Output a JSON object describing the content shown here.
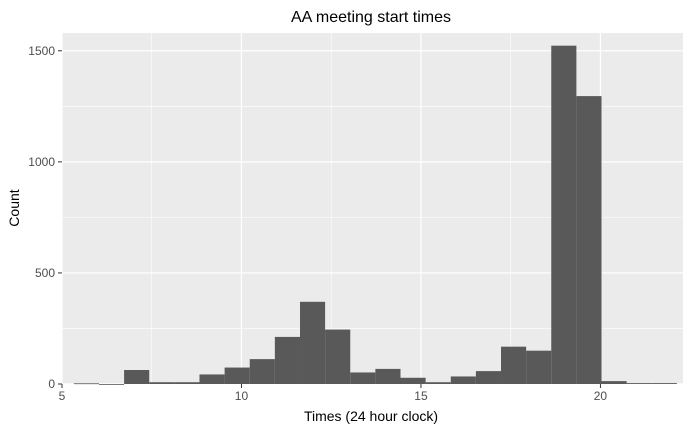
{
  "chart_data": {
    "type": "bar",
    "subtype": "histogram",
    "title": "AA meeting start times",
    "xlabel": "Times (24 hour clock)",
    "ylabel": "Count",
    "xlim": [
      5,
      22.3
    ],
    "ylim": [
      0,
      1580
    ],
    "xticks": [
      5,
      10,
      15,
      20
    ],
    "yticks": [
      0,
      500,
      1000,
      1500
    ],
    "grid": true,
    "panel_color": "#ebebeb",
    "grid_color": "#ffffff",
    "bar_color": "#595959",
    "bins": [
      {
        "start": 5.33,
        "end": 6.03,
        "count": 3
      },
      {
        "start": 6.03,
        "end": 6.73,
        "count": 0
      },
      {
        "start": 6.73,
        "end": 7.43,
        "count": 63
      },
      {
        "start": 7.43,
        "end": 8.13,
        "count": 8
      },
      {
        "start": 8.13,
        "end": 8.83,
        "count": 8
      },
      {
        "start": 8.83,
        "end": 9.53,
        "count": 43
      },
      {
        "start": 9.53,
        "end": 10.23,
        "count": 74
      },
      {
        "start": 10.23,
        "end": 10.93,
        "count": 112
      },
      {
        "start": 10.93,
        "end": 11.63,
        "count": 212
      },
      {
        "start": 11.63,
        "end": 12.33,
        "count": 370
      },
      {
        "start": 12.33,
        "end": 13.03,
        "count": 245
      },
      {
        "start": 13.03,
        "end": 13.73,
        "count": 52
      },
      {
        "start": 13.73,
        "end": 14.43,
        "count": 68
      },
      {
        "start": 14.43,
        "end": 15.13,
        "count": 28
      },
      {
        "start": 15.13,
        "end": 15.83,
        "count": 8
      },
      {
        "start": 15.83,
        "end": 16.53,
        "count": 34
      },
      {
        "start": 16.53,
        "end": 17.23,
        "count": 58
      },
      {
        "start": 17.23,
        "end": 17.93,
        "count": 168
      },
      {
        "start": 17.93,
        "end": 18.63,
        "count": 150
      },
      {
        "start": 18.63,
        "end": 19.33,
        "count": 1523
      },
      {
        "start": 19.33,
        "end": 20.03,
        "count": 1296
      },
      {
        "start": 20.03,
        "end": 20.73,
        "count": 13
      },
      {
        "start": 20.73,
        "end": 21.43,
        "count": 4
      },
      {
        "start": 21.43,
        "end": 22.13,
        "count": 4
      }
    ]
  }
}
